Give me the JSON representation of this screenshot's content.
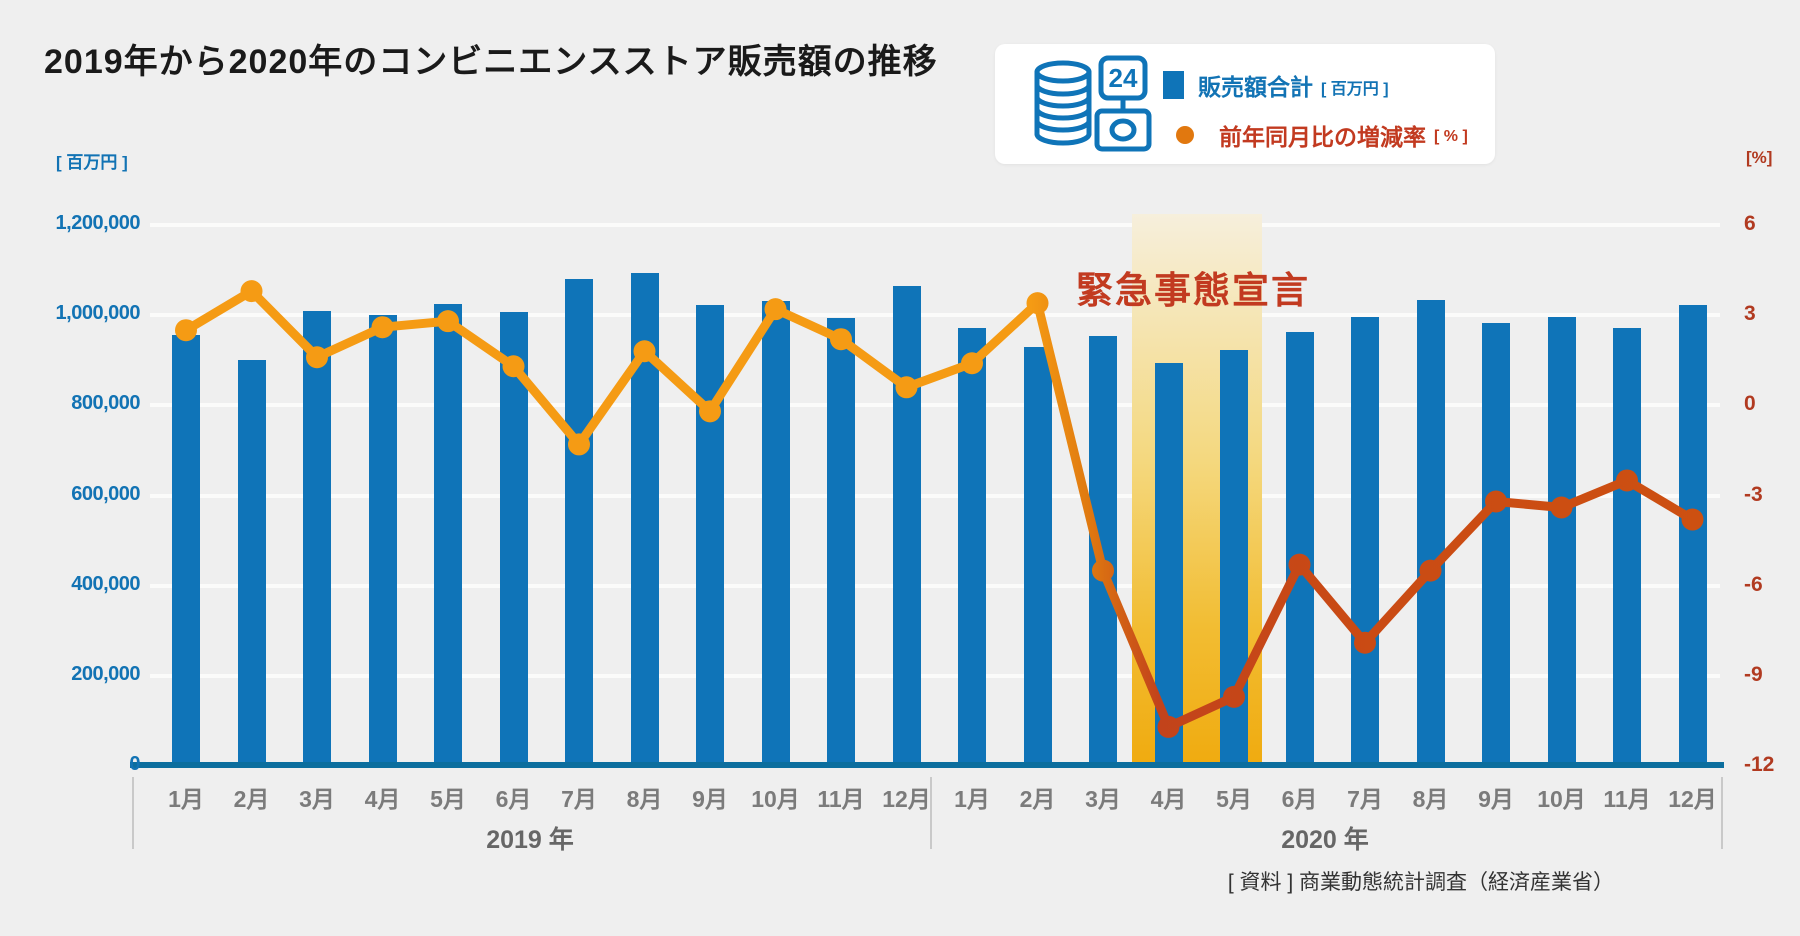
{
  "title": "2019年から2020年のコンビニエンスストア販売額の推移",
  "legend": {
    "icon_text_24": "24",
    "bars_label": "販売額合計",
    "bars_unit": "[ 百万円 ]",
    "line_label": "前年同月比の増減率",
    "line_unit": "[ % ]"
  },
  "axes": {
    "left_unit": "[ 百万円 ]",
    "right_unit": "[%]",
    "left_ticks": [
      {
        "label": "1,200,000",
        "value": 1200000
      },
      {
        "label": "1,000,000",
        "value": 1000000
      },
      {
        "label": "800,000",
        "value": 800000
      },
      {
        "label": "600,000",
        "value": 600000
      },
      {
        "label": "400,000",
        "value": 400000
      },
      {
        "label": "200,000",
        "value": 200000
      },
      {
        "label": "0",
        "value": 0
      }
    ],
    "right_ticks": [
      {
        "label": "6",
        "value": 6
      },
      {
        "label": "3",
        "value": 3
      },
      {
        "label": "0",
        "value": 0
      },
      {
        "label": "-3",
        "value": -3
      },
      {
        "label": "-6",
        "value": -6
      },
      {
        "label": "-9",
        "value": -9
      },
      {
        "label": "-12",
        "value": -12
      }
    ]
  },
  "x": {
    "year_groups": [
      {
        "label": "2019 年",
        "from": 0,
        "to": 11
      },
      {
        "label": "2020 年",
        "from": 12,
        "to": 23
      }
    ]
  },
  "annotation": {
    "text": "緊急事態宣言",
    "band_from_month_index": 15,
    "band_to_month_index": 16
  },
  "source": "[ 資料 ] 商業動態統計調査（経済産業省）",
  "colors": {
    "background": "#efefef",
    "bar_blue": "#0f74b8",
    "line_orange_2019": "#f59b14",
    "line_red_2020": "#c9491a",
    "annotation_red": "#c23a20",
    "right_axis_red": "#b13a20",
    "left_axis_blue": "#1273b4",
    "baseline_blue": "#0c6e9e",
    "band_top": "#f6efdc",
    "band_bottom": "#f0ab10",
    "gridline": "#fbfbfa",
    "month_label_gray": "#7b7b7b"
  },
  "chart_data": {
    "type": "bar+line",
    "title": "2019年から2020年のコンビニエンスストア販売額の推移",
    "categories": [
      "1月",
      "2月",
      "3月",
      "4月",
      "5月",
      "6月",
      "7月",
      "8月",
      "9月",
      "10月",
      "11月",
      "12月",
      "1月",
      "2月",
      "3月",
      "4月",
      "5月",
      "6月",
      "7月",
      "8月",
      "9月",
      "10月",
      "11月",
      "12月"
    ],
    "category_years": [
      "2019",
      "2019",
      "2019",
      "2019",
      "2019",
      "2019",
      "2019",
      "2019",
      "2019",
      "2019",
      "2019",
      "2019",
      "2020",
      "2020",
      "2020",
      "2020",
      "2020",
      "2020",
      "2020",
      "2020",
      "2020",
      "2020",
      "2020",
      "2020"
    ],
    "series": [
      {
        "name": "販売額合計",
        "type": "bar",
        "unit": "百万円",
        "axis": "left",
        "values": [
          956000,
          901000,
          1010000,
          1001000,
          1025000,
          1008000,
          1080000,
          1093000,
          1022000,
          1032000,
          994000,
          1065000,
          971000,
          930000,
          954000,
          894000,
          923000,
          963000,
          995000,
          1034000,
          983000,
          995000,
          971000,
          1023000
        ]
      },
      {
        "name": "前年同月比の増減率",
        "type": "line",
        "unit": "%",
        "axis": "right",
        "values": [
          2.5,
          3.8,
          1.6,
          2.6,
          2.8,
          1.3,
          -1.3,
          1.8,
          -0.2,
          3.2,
          2.2,
          0.6,
          1.4,
          3.4,
          -5.5,
          -10.7,
          -9.7,
          -5.3,
          -7.9,
          -5.5,
          -3.2,
          -3.4,
          -2.5,
          -3.8
        ]
      }
    ],
    "left_ylim": [
      0,
      1200000
    ],
    "right_ylim": [
      -12,
      6
    ],
    "grid": true,
    "legend_position": "top-right",
    "annotation": {
      "text": "緊急事態宣言",
      "highlight_months": [
        "2020-4月",
        "2020-5月"
      ]
    }
  }
}
